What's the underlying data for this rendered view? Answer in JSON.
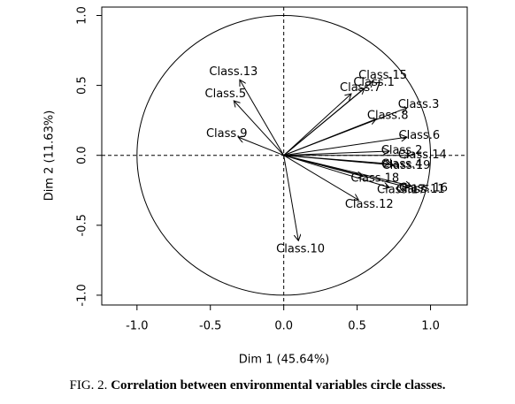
{
  "chart_data": {
    "type": "vector",
    "xlabel": "Dim 1 (45.64%)",
    "ylabel": "Dim 2 (11.63%)",
    "caption_label": "FIG. 2.",
    "caption_text": "Correlation between environmental variables circle classes.",
    "xlim": [
      -1.24,
      1.25
    ],
    "ylim": [
      -1.07,
      1.06
    ],
    "xticks": [
      {
        "value": -1,
        "label": "-1.0"
      },
      {
        "value": -0.5,
        "label": "-0.5"
      },
      {
        "value": 0,
        "label": "0.0"
      },
      {
        "value": 0.5,
        "label": "0.5"
      },
      {
        "value": 1,
        "label": "1.0"
      }
    ],
    "yticks": [
      {
        "value": -1,
        "label": "-1.0"
      },
      {
        "value": -0.5,
        "label": "-0.5"
      },
      {
        "value": 0,
        "label": "0.0"
      },
      {
        "value": 0.5,
        "label": "0.5"
      },
      {
        "value": 1,
        "label": "1.0"
      }
    ],
    "color": "#000000",
    "vectors": [
      {
        "label": "Class.13",
        "x": -0.3,
        "y": 0.54
      },
      {
        "label": "Class.5",
        "x": -0.34,
        "y": 0.39
      },
      {
        "label": "Class.9",
        "x": -0.31,
        "y": 0.13
      },
      {
        "label": "Class.7",
        "x": 0.46,
        "y": 0.44
      },
      {
        "label": "Class.1",
        "x": 0.55,
        "y": 0.48
      },
      {
        "label": "Class.15",
        "x": 0.61,
        "y": 0.53
      },
      {
        "label": "Class.3",
        "x": 0.84,
        "y": 0.34
      },
      {
        "label": "Class.8",
        "x": 0.63,
        "y": 0.26
      },
      {
        "label": "Class.6",
        "x": 0.84,
        "y": 0.13
      },
      {
        "label": "Class.2",
        "x": 0.72,
        "y": 0.03
      },
      {
        "label": "Class.14",
        "x": 0.86,
        "y": 0.0
      },
      {
        "label": "Class.4",
        "x": 0.72,
        "y": -0.06
      },
      {
        "label": "Class.19",
        "x": 0.75,
        "y": -0.07
      },
      {
        "label": "Class.18",
        "x": 0.54,
        "y": -0.15
      },
      {
        "label": "Class.17",
        "x": 0.72,
        "y": -0.23
      },
      {
        "label": "Class.16",
        "x": 0.87,
        "y": -0.22
      },
      {
        "label": "Class.11",
        "x": 0.85,
        "y": -0.23
      },
      {
        "label": "Class.12",
        "x": 0.51,
        "y": -0.32
      },
      {
        "label": "Class.10",
        "x": 0.1,
        "y": -0.61
      }
    ]
  }
}
